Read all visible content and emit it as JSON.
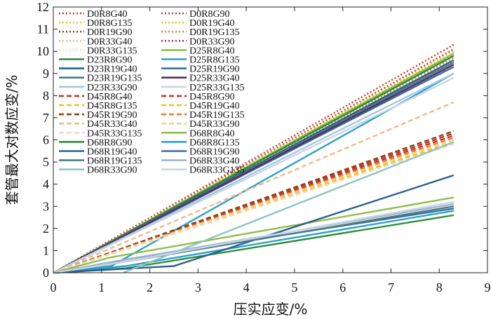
{
  "chart_data": {
    "type": "line",
    "title": "",
    "xlabel": "压实应变/%",
    "ylabel": "套管最大对数应变/%",
    "xlim": [
      0,
      9
    ],
    "ylim": [
      0,
      12
    ],
    "xticks": [
      "0",
      "1",
      "2",
      "3",
      "4",
      "5",
      "6",
      "7",
      "8",
      "9"
    ],
    "yticks": [
      "0",
      "1",
      "2",
      "3",
      "4",
      "5",
      "6",
      "7",
      "8",
      "9",
      "10",
      "11",
      "12"
    ],
    "grid": false,
    "legend_position": "top-left, two columns",
    "series": [
      {
        "name": "D0R8G40",
        "color": "#c0392b",
        "dash": "dot",
        "x": [
          0,
          8.3
        ],
        "y": [
          0,
          10.3
        ]
      },
      {
        "name": "D0R8G90",
        "color": "#c0392b",
        "dash": "dot",
        "x": [
          0,
          8.3
        ],
        "y": [
          0,
          10.1
        ]
      },
      {
        "name": "D0R8G135",
        "color": "#e6c619",
        "dash": "dot",
        "x": [
          0,
          8.3
        ],
        "y": [
          0,
          10.0
        ]
      },
      {
        "name": "D0R19G40",
        "color": "#e6c619",
        "dash": "dot",
        "x": [
          0,
          8.3
        ],
        "y": [
          0,
          9.9
        ]
      },
      {
        "name": "D0R19G90",
        "color": "#8b4513",
        "dash": "dot",
        "x": [
          0,
          8.3
        ],
        "y": [
          0,
          9.8
        ]
      },
      {
        "name": "D0R19G135",
        "color": "#e0803a",
        "dash": "dot",
        "x": [
          0,
          8.3
        ],
        "y": [
          0,
          9.7
        ]
      },
      {
        "name": "D0R33G40",
        "color": "#f0b98a",
        "dash": "dot",
        "x": [
          0,
          8.3
        ],
        "y": [
          0,
          9.6
        ]
      },
      {
        "name": "D0R33G90",
        "color": "#9b3b5a",
        "dash": "dot",
        "x": [
          0,
          8.3
        ],
        "y": [
          0,
          9.5
        ]
      },
      {
        "name": "D0R33G135",
        "color": "#f3d9c4",
        "dash": "dot",
        "x": [
          0,
          8.3
        ],
        "y": [
          0,
          9.4
        ]
      },
      {
        "name": "D25R8G40",
        "color": "#8fbf4a",
        "dash": "solid",
        "x": [
          0,
          8.3
        ],
        "y": [
          0,
          9.9
        ]
      },
      {
        "name": "D23R8G90",
        "color": "#2e8b3a",
        "dash": "solid",
        "x": [
          0,
          8.3
        ],
        "y": [
          0,
          9.8
        ]
      },
      {
        "name": "D25R8G135",
        "color": "#2aa0c8",
        "dash": "solid",
        "x": [
          0,
          1.2,
          8.3
        ],
        "y": [
          0,
          0.3,
          9.0
        ]
      },
      {
        "name": "D23R19G40",
        "color": "#2b5f8f",
        "dash": "solid",
        "x": [
          0,
          8.3
        ],
        "y": [
          0,
          9.6
        ]
      },
      {
        "name": "D25R19G90",
        "color": "#3b6f9a",
        "dash": "solid",
        "x": [
          0,
          8.3
        ],
        "y": [
          0,
          9.3
        ]
      },
      {
        "name": "D23R19G135",
        "color": "#4a7c8a",
        "dash": "solid",
        "x": [
          0,
          8.3
        ],
        "y": [
          0,
          9.5
        ]
      },
      {
        "name": "D25R33G40",
        "color": "#5a2e63",
        "dash": "solid",
        "x": [
          0,
          8.3
        ],
        "y": [
          0,
          9.4
        ]
      },
      {
        "name": "D23R33G90",
        "color": "#a9c4dd",
        "dash": "solid",
        "x": [
          0,
          8.3
        ],
        "y": [
          0,
          9.0
        ]
      },
      {
        "name": "D25R33G135",
        "color": "#c8d6e6",
        "dash": "solid",
        "x": [
          0,
          8.3
        ],
        "y": [
          0,
          8.8
        ]
      },
      {
        "name": "D45R8G40",
        "color": "#c0392b",
        "dash": "dash",
        "x": [
          0,
          8.3
        ],
        "y": [
          0,
          6.3
        ]
      },
      {
        "name": "D45R8G90",
        "color": "#c0392b",
        "dash": "dash",
        "x": [
          0,
          8.3
        ],
        "y": [
          0,
          6.2
        ]
      },
      {
        "name": "D45R8G135",
        "color": "#e6c619",
        "dash": "dash",
        "x": [
          0,
          8.3
        ],
        "y": [
          0,
          6.0
        ]
      },
      {
        "name": "D45R19G40",
        "color": "#e6c619",
        "dash": "dash",
        "x": [
          0,
          8.3
        ],
        "y": [
          0,
          5.9
        ]
      },
      {
        "name": "D45R19G90",
        "color": "#8b4513",
        "dash": "dash",
        "x": [
          0,
          8.3
        ],
        "y": [
          0,
          6.4
        ]
      },
      {
        "name": "D45R19G135",
        "color": "#e0803a",
        "dash": "dash",
        "x": [
          0,
          8.3
        ],
        "y": [
          0,
          6.1
        ]
      },
      {
        "name": "D45R33G40",
        "color": "#f0b98a",
        "dash": "dash",
        "x": [
          0,
          8.3
        ],
        "y": [
          0,
          7.7
        ]
      },
      {
        "name": "D45R33G90",
        "color": "#f5d08a",
        "dash": "dash",
        "x": [
          0,
          8.3
        ],
        "y": [
          0,
          6.0
        ]
      },
      {
        "name": "D45R33G135",
        "color": "#f3d9c4",
        "dash": "dash",
        "x": [
          0,
          8.3
        ],
        "y": [
          0,
          5.8
        ]
      },
      {
        "name": "D68R8G40",
        "color": "#8fbf4a",
        "dash": "solid",
        "x": [
          0,
          1.2,
          8.3
        ],
        "y": [
          0,
          0.7,
          3.4
        ]
      },
      {
        "name": "D68R8G90",
        "color": "#2e8b3a",
        "dash": "solid",
        "x": [
          0,
          1.5,
          8.3
        ],
        "y": [
          0,
          0.2,
          2.6
        ]
      },
      {
        "name": "D68R8G135",
        "color": "#2aa0c8",
        "dash": "solid",
        "x": [
          0,
          1.5,
          8.3
        ],
        "y": [
          0,
          0.3,
          2.8
        ]
      },
      {
        "name": "D68R19G40",
        "color": "#2b5f8f",
        "dash": "solid",
        "x": [
          0,
          2.5,
          8.3
        ],
        "y": [
          0,
          0.3,
          4.4
        ]
      },
      {
        "name": "D68R19G90",
        "color": "#3b6f9a",
        "dash": "solid",
        "x": [
          0,
          1.5,
          8.3
        ],
        "y": [
          0,
          0.6,
          2.9
        ]
      },
      {
        "name": "D68R19G135",
        "color": "#4a7c8a",
        "dash": "solid",
        "x": [
          0,
          1.5,
          8.3
        ],
        "y": [
          0,
          0.5,
          3.0
        ]
      },
      {
        "name": "D68R33G40",
        "color": "#9fb5c5",
        "dash": "solid",
        "x": [
          0,
          1.5,
          8.3
        ],
        "y": [
          0,
          0.6,
          3.1
        ]
      },
      {
        "name": "D68R33G90",
        "color": "#8ec4c4",
        "dash": "solid",
        "x": [
          1.45,
          8.3
        ],
        "y": [
          0,
          5.9
        ]
      },
      {
        "name": "D68R33G135",
        "color": "#c8d6e6",
        "dash": "solid",
        "x": [
          0,
          1.5,
          8.3
        ],
        "y": [
          0,
          0.5,
          3.2
        ]
      }
    ]
  }
}
